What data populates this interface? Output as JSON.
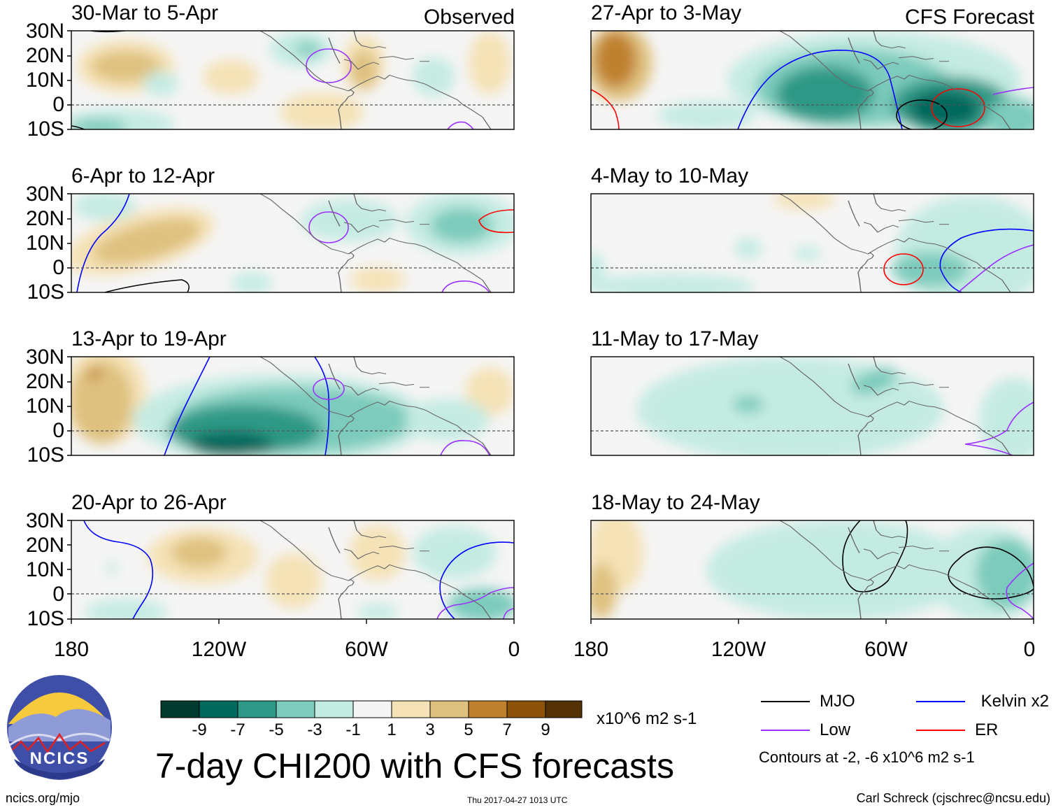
{
  "header": {
    "left_column_label": "Observed",
    "right_column_label": "CFS Forecast"
  },
  "panels": [
    {
      "period": "30-Mar to 5-Apr"
    },
    {
      "period": "27-Apr to 3-May"
    },
    {
      "period": "6-Apr to 12-Apr"
    },
    {
      "period": "4-May to 10-May"
    },
    {
      "period": "13-Apr to 19-Apr"
    },
    {
      "period": "11-May to 17-May"
    },
    {
      "period": "20-Apr to 26-Apr"
    },
    {
      "period": "18-May to 24-May"
    }
  ],
  "axes": {
    "lat_labels": [
      "30N",
      "20N",
      "10N",
      "0",
      "10S"
    ],
    "lon_labels": [
      "180",
      "120W",
      "60W",
      "0"
    ]
  },
  "colorbar": {
    "tick_labels": [
      "-9",
      "-7",
      "-5",
      "-3",
      "-1",
      "1",
      "3",
      "5",
      "7",
      "9"
    ],
    "colors": [
      "#00392e",
      "#00685c",
      "#2e9886",
      "#7ccbbc",
      "#c4ebe2",
      "#f5f5f5",
      "#f5e2b6",
      "#dfc17f",
      "#bf812d",
      "#8c510a",
      "#543005"
    ],
    "units": "x10^6 m2 s-1"
  },
  "title": "7-day CHI200 with CFS forecasts",
  "contour_legend": {
    "items": [
      {
        "label": "MJO",
        "color": "#000000"
      },
      {
        "label": "Kelvin x2",
        "color": "#0000ff"
      },
      {
        "label": "Low",
        "color": "#9b30ff"
      },
      {
        "label": "ER",
        "color": "#ff0000"
      }
    ],
    "note": "Contours at -2, -6 x10^6 m2 s-1"
  },
  "logo": {
    "text": "NCICS"
  },
  "footer": {
    "url": "ncics.org/mjo",
    "timestamp": "Thu 2017-04-27 1013 UTC",
    "author": "Carl Schreck (cjschrec@ncsu.edu)"
  }
}
